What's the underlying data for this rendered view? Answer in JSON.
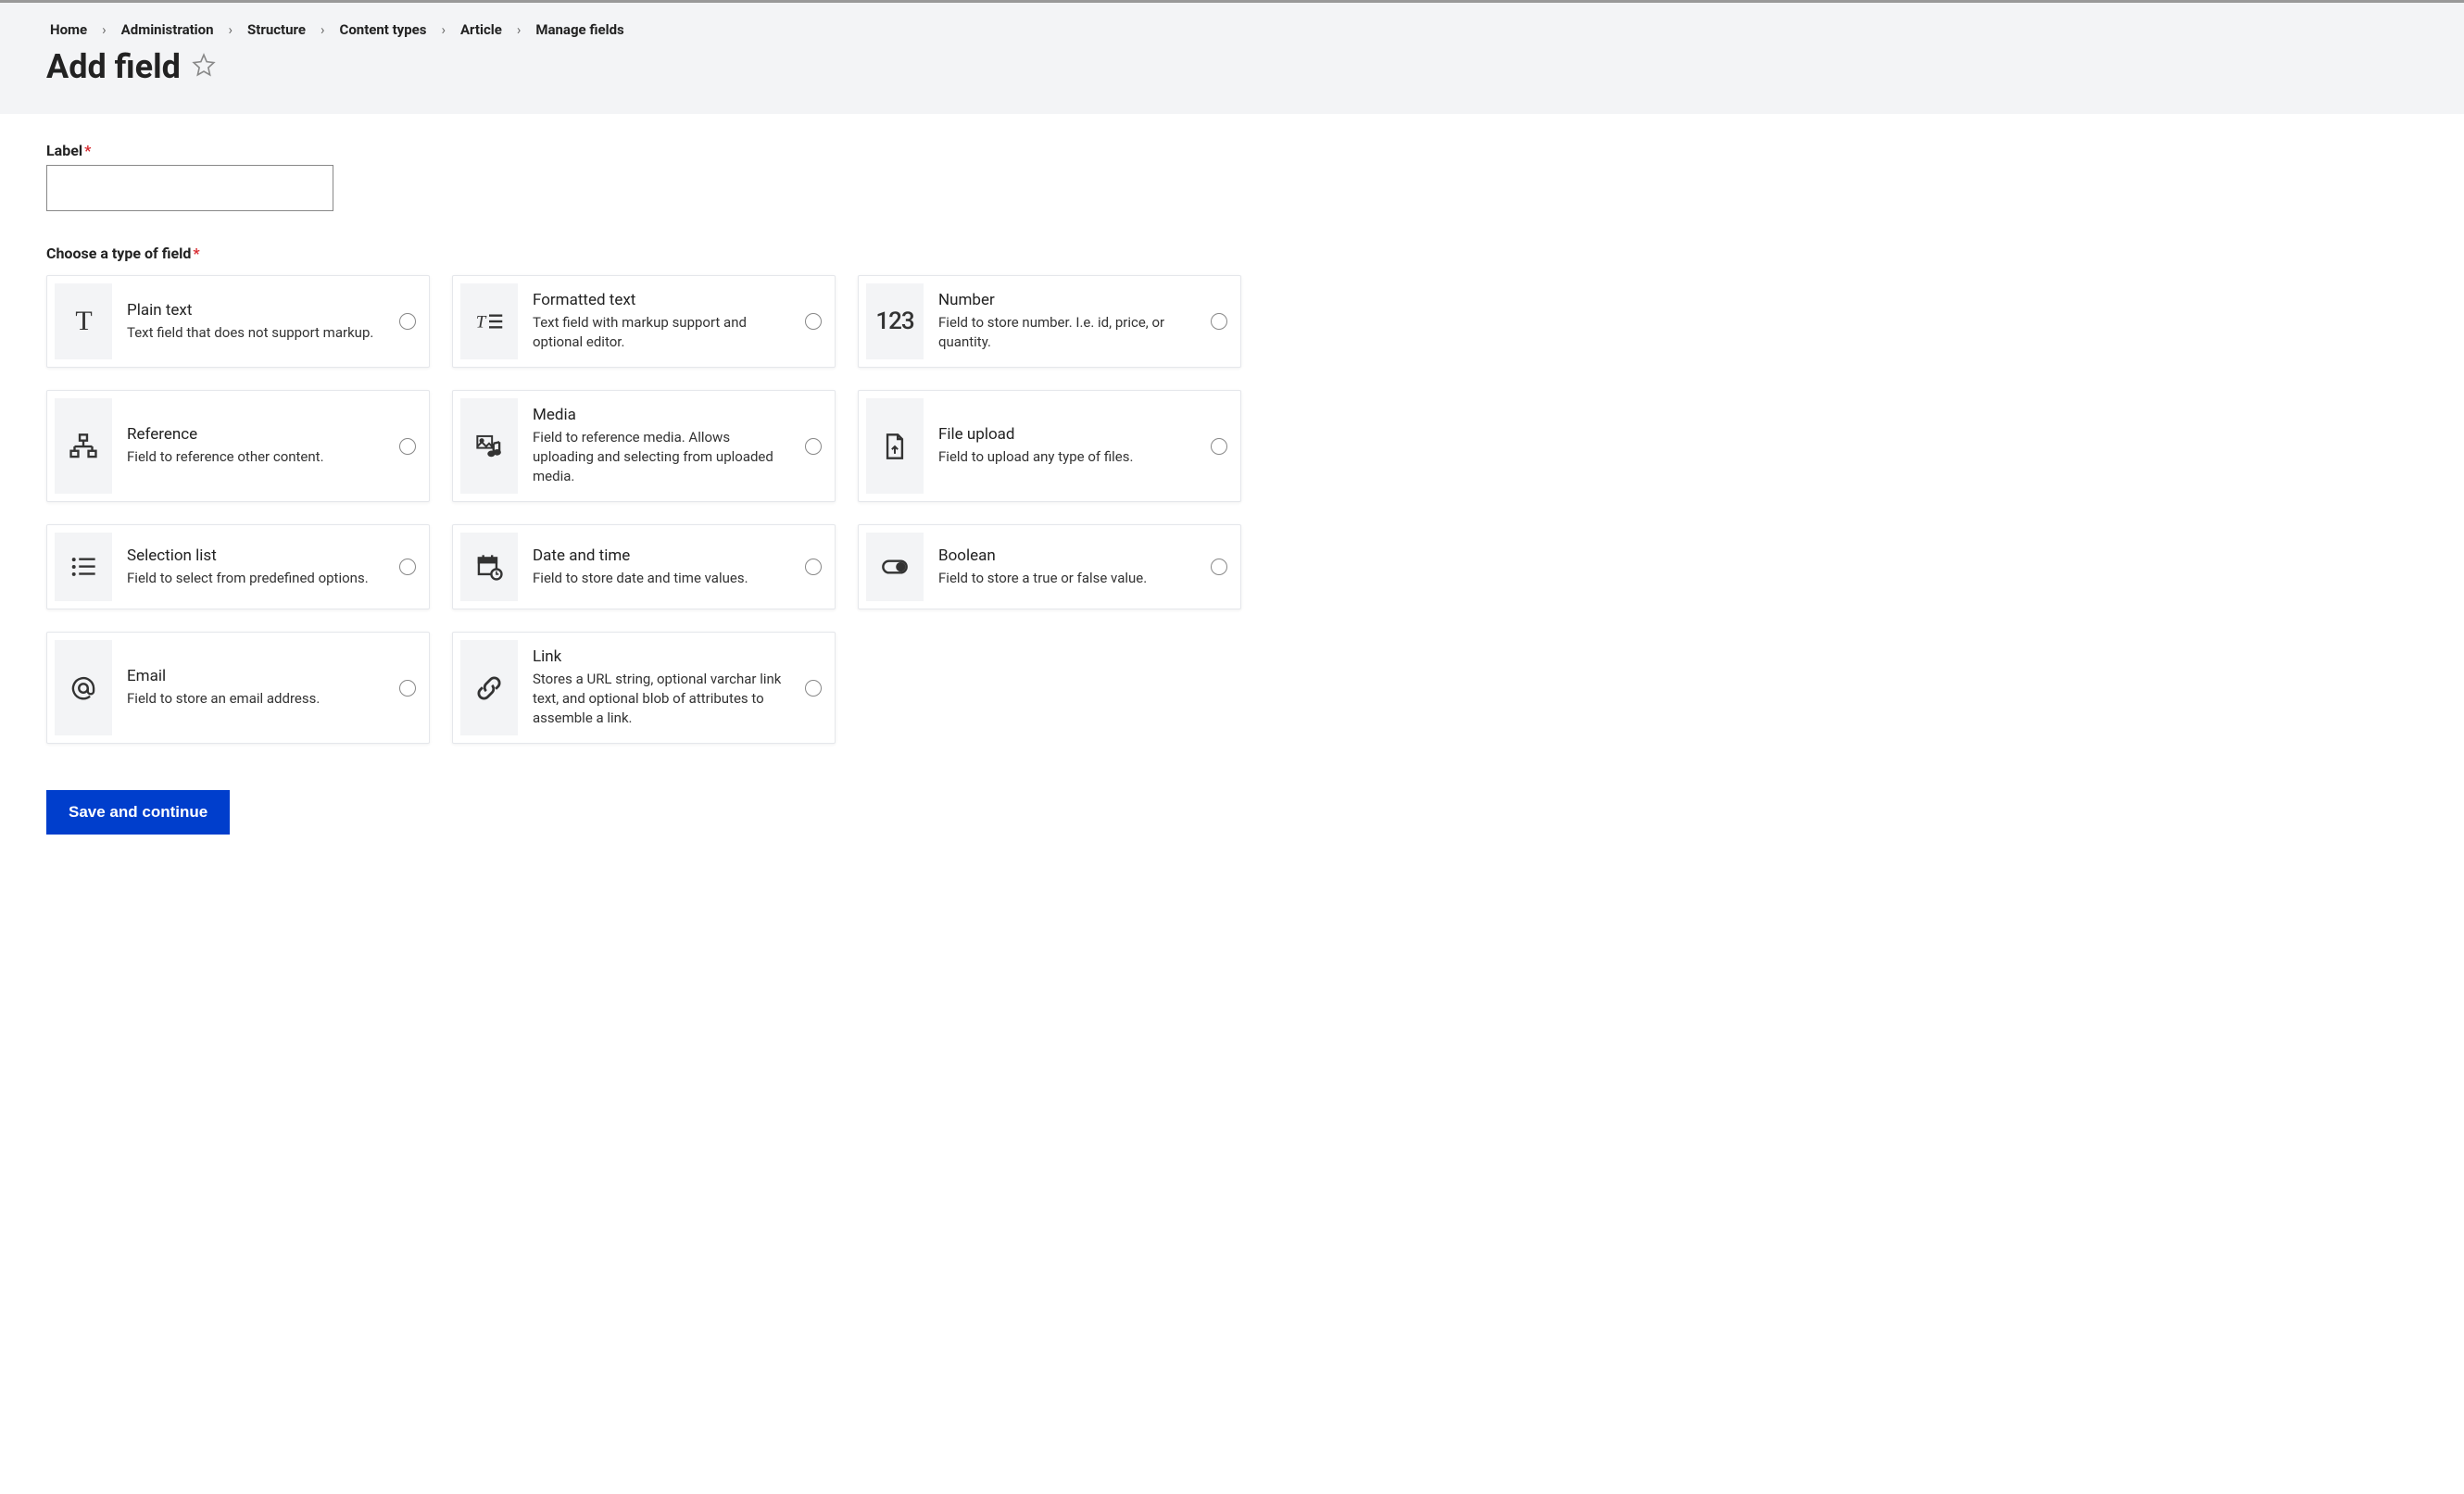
{
  "breadcrumb": {
    "items": [
      {
        "label": "Home"
      },
      {
        "label": "Administration"
      },
      {
        "label": "Structure"
      },
      {
        "label": "Content types"
      },
      {
        "label": "Article"
      },
      {
        "label": "Manage fields"
      }
    ],
    "separator": "›"
  },
  "page_title": "Add field",
  "form": {
    "label_field": {
      "label": "Label",
      "value": ""
    },
    "type_section_label": "Choose a type of field",
    "submit_label": "Save and continue"
  },
  "field_types": [
    {
      "id": "plain-text",
      "icon": "T",
      "title": "Plain text",
      "desc": "Text field that does not support markup."
    },
    {
      "id": "formatted-text",
      "icon": "formatted",
      "title": "Formatted text",
      "desc": "Text field with markup support and optional editor."
    },
    {
      "id": "number",
      "icon": "123",
      "title": "Number",
      "desc": "Field to store number. I.e. id, price, or quantity."
    },
    {
      "id": "reference",
      "icon": "reference",
      "title": "Reference",
      "desc": "Field to reference other content."
    },
    {
      "id": "media",
      "icon": "media",
      "title": "Media",
      "desc": "Field to reference media. Allows uploading and selecting from uploaded media."
    },
    {
      "id": "file-upload",
      "icon": "file",
      "title": "File upload",
      "desc": "Field to upload any type of files."
    },
    {
      "id": "selection-list",
      "icon": "list",
      "title": "Selection list",
      "desc": "Field to select from predefined options."
    },
    {
      "id": "date-time",
      "icon": "calendar",
      "title": "Date and time",
      "desc": "Field to store date and time values."
    },
    {
      "id": "boolean",
      "icon": "toggle",
      "title": "Boolean",
      "desc": "Field to store a true or false value."
    },
    {
      "id": "email",
      "icon": "at",
      "title": "Email",
      "desc": "Field to store an email address."
    },
    {
      "id": "link",
      "icon": "link",
      "title": "Link",
      "desc": "Stores a URL string, optional varchar link text, and optional blob of attributes to assemble a link."
    }
  ],
  "colors": {
    "header_bg": "#f3f4f6",
    "card_icon_bg": "#f3f4f6",
    "primary_button_bg": "#003ecc",
    "required_color": "#d8292f",
    "text_color": "#222222",
    "border_color": "#e5e7eb"
  }
}
